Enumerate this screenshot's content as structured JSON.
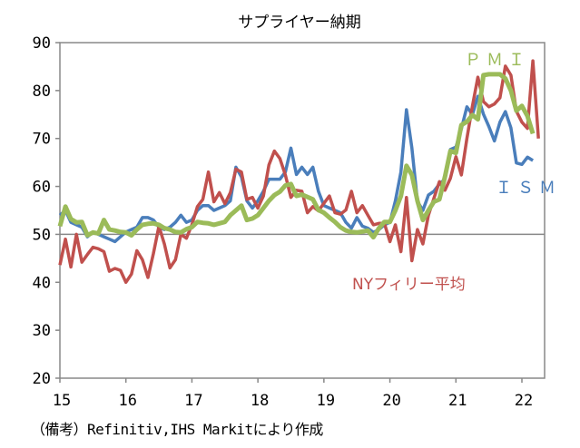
{
  "chart_data": {
    "type": "line",
    "title": "サプライヤー納期",
    "xlabel": "",
    "ylabel": "",
    "ylim": [
      20,
      90
    ],
    "yticks": [
      "20",
      "30",
      "40",
      "50",
      "60",
      "70",
      "80",
      "90"
    ],
    "xticks": [
      "15",
      "16",
      "17",
      "18",
      "19",
      "20",
      "21",
      "22"
    ],
    "start": "2015-01",
    "frequency": "monthly",
    "reference_line": 50,
    "grid": false,
    "series": [
      {
        "name": "ＩＳＭ",
        "color": "#4a7ebb",
        "values": [
          54,
          55,
          52.5,
          52,
          51.5,
          49.5,
          50.5,
          50,
          49.5,
          49,
          48.5,
          49.5,
          50.5,
          51,
          51.5,
          53.5,
          53.5,
          53,
          51.5,
          51,
          51.5,
          52.5,
          54,
          52.5,
          53,
          55,
          56,
          56,
          55,
          55.5,
          56,
          57,
          64,
          62,
          57,
          55.5,
          57,
          59,
          61.5,
          61.5,
          61.5,
          63,
          68,
          62.5,
          64,
          62.5,
          64,
          59,
          56,
          55.5,
          55,
          54.5,
          52.5,
          51.3,
          53.5,
          51.7,
          51.3,
          50.4,
          51,
          52,
          52.5,
          57,
          63,
          76,
          68,
          56.9,
          55,
          58.2,
          59,
          60.5,
          61.5,
          67.7,
          68.2,
          72,
          76.6,
          75,
          78.8,
          75.1,
          72.5,
          69.5,
          73.4,
          75.6,
          72.2,
          64.9,
          64.6,
          66.1,
          65.4
        ]
      },
      {
        "name": "NYフィリー平均",
        "color": "#c0504d",
        "values": [
          43.6,
          49,
          43.2,
          50,
          44.2,
          45.8,
          47.3,
          47,
          46.4,
          42.3,
          42.9,
          42.5,
          40,
          41.7,
          46.6,
          44.7,
          41,
          46,
          51.7,
          48,
          43,
          44.7,
          50,
          49.2,
          52,
          55.8,
          57.3,
          63,
          56.8,
          58.7,
          56.4,
          58.7,
          63.6,
          63,
          57.3,
          57.7,
          55.5,
          58,
          64.5,
          67.4,
          65.8,
          62.4,
          57.7,
          59.2,
          59,
          54.5,
          55.8,
          54.9,
          56.5,
          58,
          54.5,
          54.2,
          55.1,
          59,
          54.5,
          56,
          54,
          52,
          52.3,
          52.3,
          48.5,
          52,
          46.4,
          57.7,
          44.5,
          51,
          48,
          54,
          57.5,
          61,
          59.2,
          61.7,
          66.2,
          62.4,
          70,
          76.8,
          82.8,
          77.7,
          76.6,
          77.2,
          78.5,
          85.1,
          83.2,
          75.7,
          73.4,
          72.1,
          86.2,
          70
        ]
      },
      {
        "name": "ＰＭＩ",
        "color": "#9bbb59",
        "values": [
          51.7,
          55.8,
          53.2,
          52.5,
          52.6,
          49.8,
          50.4,
          50.2,
          53,
          51,
          50.8,
          50.5,
          50.4,
          49.8,
          51,
          52,
          52.2,
          52.3,
          52,
          51.3,
          51,
          50.5,
          50.4,
          51.1,
          51.5,
          52.6,
          52.4,
          52.3,
          52,
          52.3,
          52.6,
          54,
          55,
          56,
          53,
          53.3,
          54,
          55.5,
          57,
          58.2,
          58.9,
          60.2,
          60.5,
          58,
          58.3,
          57.8,
          57.3,
          55.1,
          54.5,
          53.5,
          52.6,
          51.5,
          50.8,
          50.5,
          50.4,
          50.6,
          50.8,
          49.4,
          51.3,
          52.6,
          52.6,
          55,
          58,
          64.3,
          62.4,
          57,
          53,
          55,
          56.8,
          57.3,
          62,
          67.4,
          67,
          72.8,
          73.5,
          74.9,
          74,
          83.2,
          83.4,
          83.4,
          83.4,
          82.5,
          80,
          75.8,
          76.8,
          74.7,
          71
        ]
      }
    ]
  },
  "note": "（備考）Refinitiv,IHS Markitにより作成"
}
